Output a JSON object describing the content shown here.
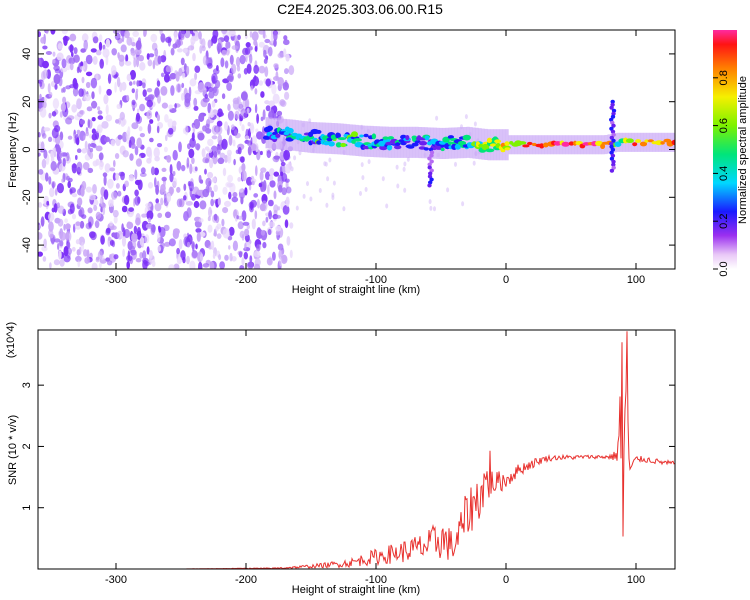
{
  "title": "C2E4.2025.303.06.00.R15",
  "colors": {
    "snr_line": "#e8312e",
    "frame": "#000000",
    "speckle": "#7b2ff7"
  },
  "chart_data": [
    {
      "type": "heatmap",
      "xlabel": "Height of straight line (km)",
      "ylabel": "Frequency (Hz)",
      "xlim": [
        -360,
        130
      ],
      "ylim": [
        -50,
        50
      ],
      "xticks": [
        "-300",
        "-200",
        "-100",
        "0",
        "100"
      ],
      "xtick_values": [
        -300,
        -200,
        -100,
        0,
        100
      ],
      "yticks": [
        "40",
        "20",
        "0",
        "-20",
        "-40"
      ],
      "ytick_values": [
        40,
        20,
        0,
        -20,
        -40
      ],
      "colorbar": {
        "label": "Normalized spectral amplitude",
        "range": [
          0,
          1
        ],
        "ticks": [
          "0.0",
          "0.2",
          "0.4",
          "0.6",
          "0.8"
        ],
        "tick_values": [
          0.0,
          0.2,
          0.4,
          0.6,
          0.8
        ],
        "colormap": "rainbow (white-purple-blue-cyan-green-yellow-red-pink)"
      },
      "noise_region_x": [
        -360,
        -165
      ],
      "ridge": {
        "x": [
          -185,
          -165,
          -150,
          -130,
          -110,
          -90,
          -70,
          -50,
          -30,
          -15,
          0,
          20,
          40,
          60,
          75,
          85,
          95,
          110,
          130
        ],
        "y": [
          7,
          6,
          5,
          4.5,
          3.5,
          3,
          3,
          2.5,
          3,
          2,
          2,
          2,
          2,
          2,
          2,
          3,
          3,
          3,
          3
        ],
        "amplitude": [
          0.35,
          0.4,
          0.45,
          0.5,
          0.45,
          0.4,
          0.45,
          0.4,
          0.5,
          0.6,
          0.7,
          0.85,
          0.9,
          0.9,
          0.9,
          0.5,
          0.8,
          0.85,
          0.8
        ]
      },
      "features": [
        {
          "x": 82,
          "y_range": [
            -10,
            20
          ],
          "note": "vertical streak"
        },
        {
          "x": -58,
          "y_range": [
            -16,
            0
          ],
          "note": "descending branch"
        }
      ]
    },
    {
      "type": "line",
      "xlabel": "Height of straight line (km)",
      "ylabel": "SNR (10 * v/v)",
      "y_multiplier": "(x10^4)",
      "xlim": [
        -360,
        130
      ],
      "ylim": [
        0,
        3.9
      ],
      "xticks": [
        "-300",
        "-200",
        "-100",
        "0",
        "100"
      ],
      "xtick_values": [
        -300,
        -200,
        -100,
        0,
        100
      ],
      "yticks": [
        "1",
        "2",
        "3"
      ],
      "ytick_values": [
        1,
        2,
        3
      ],
      "series": [
        {
          "x": [
            -360,
            -300,
            -250,
            -200,
            -180,
            -160,
            -140,
            -120,
            -100,
            -80,
            -60,
            -50,
            -40,
            -30,
            -20,
            -15,
            -10,
            0,
            10,
            20,
            30,
            40,
            50,
            60,
            70,
            80,
            85,
            88,
            90,
            92,
            95,
            100,
            110,
            120,
            130
          ],
          "y": [
            0.0,
            0.0,
            0.0,
            0.01,
            0.01,
            0.03,
            0.06,
            0.1,
            0.2,
            0.28,
            0.38,
            0.5,
            0.35,
            0.9,
            1.2,
            1.45,
            1.4,
            1.45,
            1.62,
            1.72,
            1.8,
            1.82,
            1.82,
            1.83,
            1.83,
            1.83,
            1.85,
            2.4,
            0.5,
            3.3,
            1.6,
            1.8,
            1.78,
            1.74,
            1.72
          ],
          "noise_amplitude": [
            0.0,
            0.0,
            0.0,
            0.005,
            0.01,
            0.02,
            0.04,
            0.07,
            0.13,
            0.18,
            0.25,
            0.35,
            0.25,
            0.4,
            0.4,
            0.4,
            0.2,
            0.15,
            0.1,
            0.08,
            0.05,
            0.04,
            0.04,
            0.03,
            0.03,
            0.04,
            0.1,
            0.9,
            0.4,
            0.6,
            0.1,
            0.05,
            0.05,
            0.04,
            0.04
          ]
        }
      ],
      "spikes": [
        {
          "x": -12,
          "y": 1.93
        },
        {
          "x": 89,
          "y": 3.7
        },
        {
          "x": 93,
          "y": 3.88
        }
      ]
    }
  ]
}
